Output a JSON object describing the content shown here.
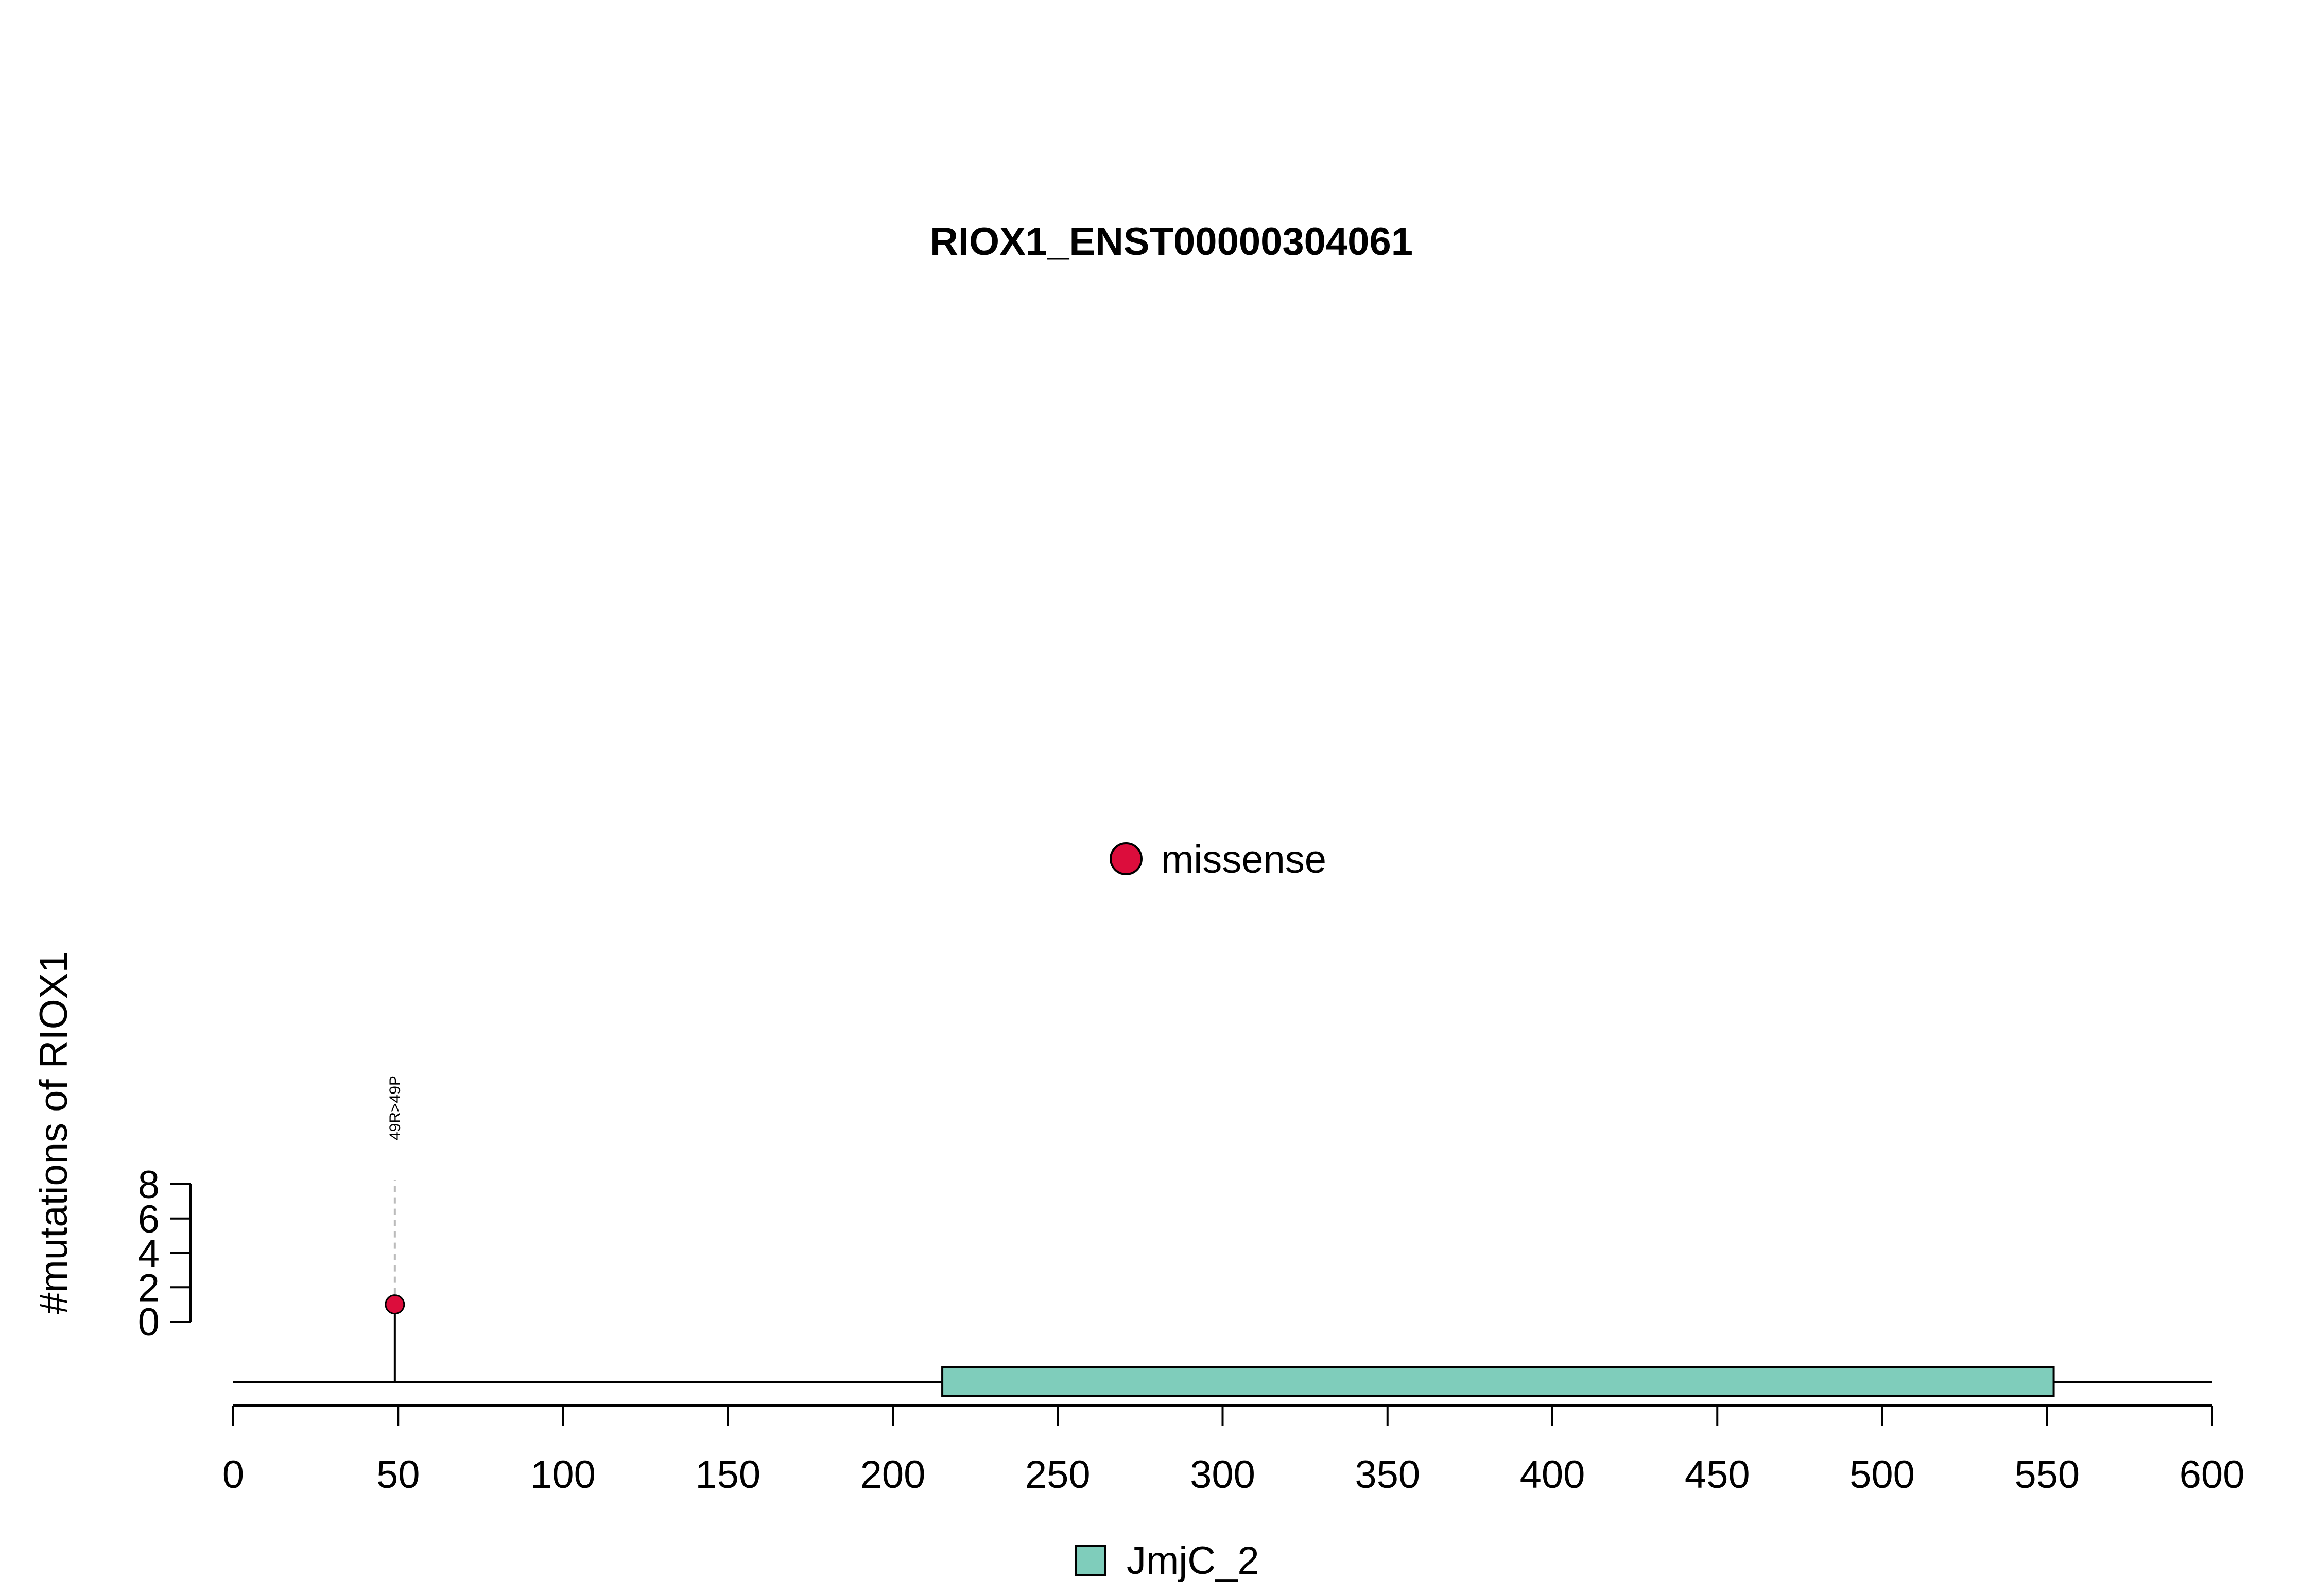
{
  "chart_data": {
    "type": "lollipop",
    "title": "RIOX1_ENST00000304061",
    "ylabel": "#mutations of RIOX1",
    "xlim": [
      0,
      600
    ],
    "x_ticks": [
      0,
      50,
      100,
      150,
      200,
      250,
      300,
      350,
      400,
      450,
      500,
      550,
      600
    ],
    "x_tick_labels": [
      "0",
      "50",
      "100",
      "150",
      "200",
      "250",
      "300",
      "350",
      "400",
      "450",
      "500",
      "550",
      "600"
    ],
    "ylim": [
      0,
      8
    ],
    "y_ticks": [
      0,
      2,
      4,
      6,
      8
    ],
    "y_tick_labels": [
      "0",
      "2",
      "4",
      "6",
      "8"
    ],
    "protein_length": 600,
    "mutations": [
      {
        "position": 49,
        "count": 1,
        "label": "49R>49P",
        "type": "missense"
      }
    ],
    "domains": [
      {
        "name": "JmjC_2",
        "start": 215,
        "end": 552,
        "color": "#7fcdbb"
      }
    ],
    "legend_mutation_types": [
      {
        "name": "missense",
        "color": "#dc0d3c"
      }
    ],
    "legend_domains": [
      {
        "name": "JmjC_2",
        "color": "#7fcdbb"
      }
    ]
  }
}
